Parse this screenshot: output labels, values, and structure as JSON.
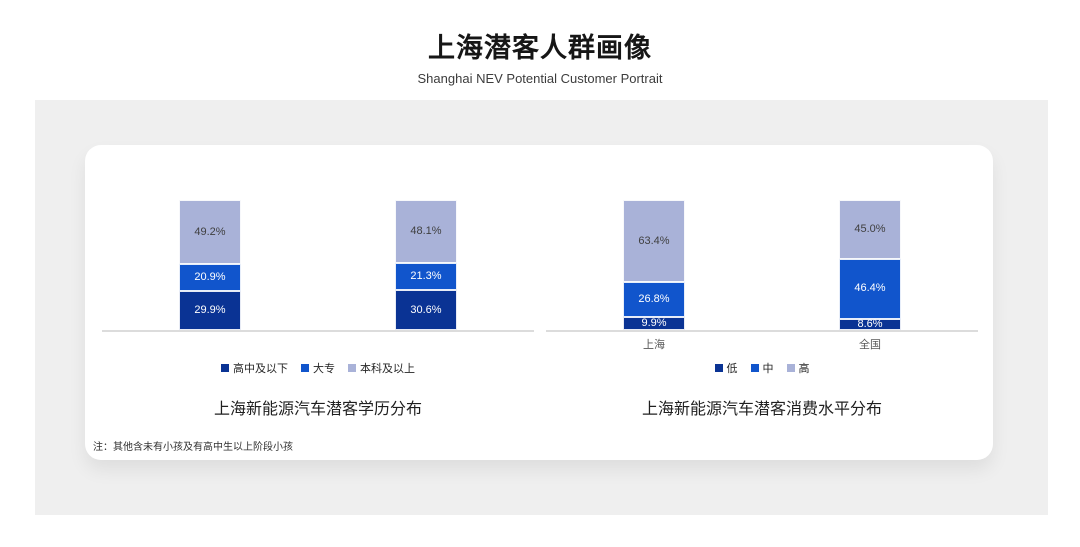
{
  "header": {
    "title": "上海潜客人群画像",
    "subtitle": "Shanghai NEV Potential Customer Portrait"
  },
  "footnote": "注：其他含未有小孩及有高中生以上阶段小孩",
  "colors": {
    "dark_blue": "#0a3394",
    "mid_blue": "#1155cc",
    "light_blue": "#a9b2d8",
    "panel_gray": "#efefef",
    "axis_gray": "#dcdcdc"
  },
  "chart_data": [
    {
      "type": "bar",
      "stacked": true,
      "title": "上海新能源汽车潜客学历分布",
      "categories": [
        "",
        ""
      ],
      "show_category_labels": false,
      "legend_position": "bottom",
      "value_suffix": "%",
      "ylim": [
        0,
        100
      ],
      "grid": false,
      "series": [
        {
          "name": "高中及以下",
          "values": [
            29.9,
            30.6
          ],
          "color": "#0a3394",
          "label_color": "#ffffff"
        },
        {
          "name": "大专",
          "values": [
            20.9,
            21.3
          ],
          "color": "#1155cc",
          "label_color": "#ffffff"
        },
        {
          "name": "本科及以上",
          "values": [
            49.2,
            48.1
          ],
          "color": "#a9b2d8",
          "label_color": "#3f3f3f"
        }
      ]
    },
    {
      "type": "bar",
      "stacked": true,
      "title": "上海新能源汽车潜客消费水平分布",
      "categories": [
        "上海",
        "全国"
      ],
      "show_category_labels": true,
      "legend_position": "bottom",
      "value_suffix": "%",
      "ylim": [
        0,
        100
      ],
      "grid": false,
      "series": [
        {
          "name": "低",
          "values": [
            9.9,
            8.6
          ],
          "color": "#0a3394",
          "label_color": "#ffffff"
        },
        {
          "name": "中",
          "values": [
            26.8,
            46.4
          ],
          "color": "#1155cc",
          "label_color": "#ffffff"
        },
        {
          "name": "高",
          "values": [
            63.4,
            45.0
          ],
          "color": "#a9b2d8",
          "label_color": "#3f3f3f"
        }
      ]
    }
  ]
}
